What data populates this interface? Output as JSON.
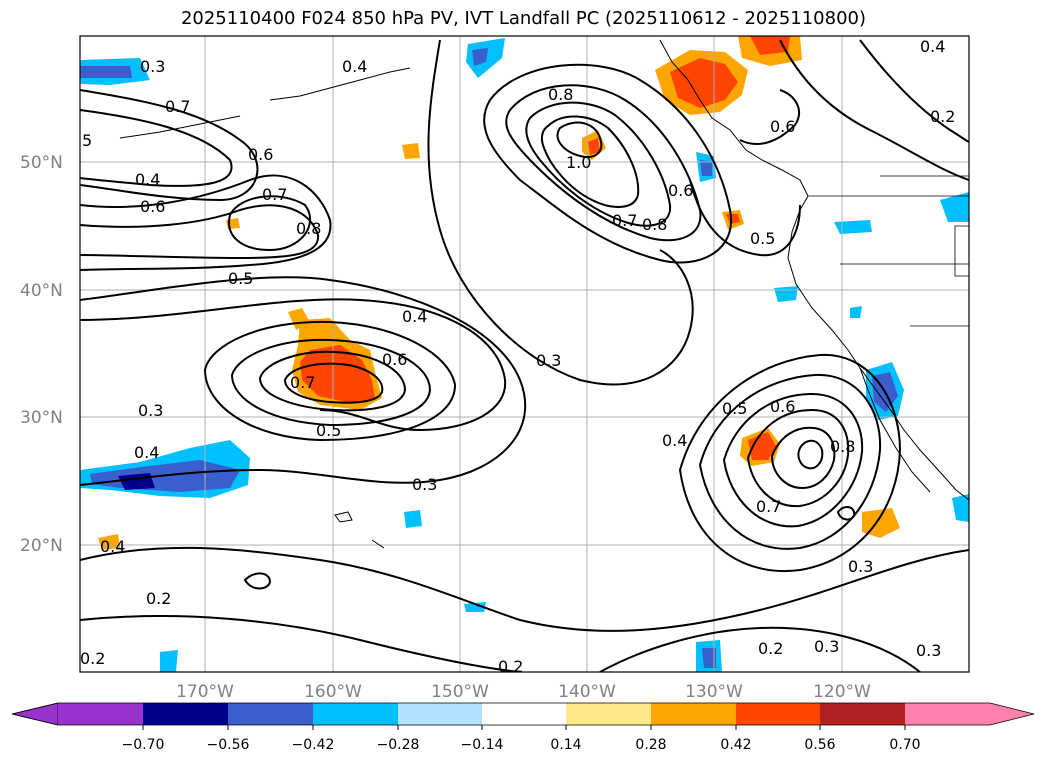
{
  "title": "2025110400 F024 850 hPa PV, IVT Landfall PC (2025110612 - 2025110800)",
  "map": {
    "lat_ticks": [
      "50°N",
      "40°N",
      "30°N",
      "20°N"
    ],
    "lon_ticks": [
      "170°W",
      "160°W",
      "150°W",
      "140°W",
      "130°W",
      "120°W"
    ],
    "contour_labels": [
      "0.3",
      "0.4",
      "0.7",
      "0.6",
      "0.4",
      "0.6",
      "0.7",
      "0.8",
      "0.5",
      "0.4",
      "0.6",
      "0.7",
      "0.5",
      "0.3",
      "0.3",
      "0.4",
      "0.3",
      "0.4",
      "0.2",
      "0.8",
      "1.0",
      "0.6",
      "0.7",
      "0.8",
      "0.5",
      "0.6",
      "0.4",
      "0.2",
      "0.5",
      "0.6",
      "0.4",
      "0.8",
      "0.7",
      "0.3",
      "0.2",
      "0.3",
      "0.3",
      "0.2",
      "0.2",
      "5"
    ]
  },
  "colorbar": {
    "colors": [
      "#9932CC",
      "#00008B",
      "#3A5FCD",
      "#00BFFF",
      "#B0E2FF",
      "#FFFFFF",
      "#FFE78A",
      "#FFA500",
      "#FF4500",
      "#B22222",
      "#FF82AB"
    ],
    "labels": [
      "−0.70",
      "−0.56",
      "−0.42",
      "−0.28",
      "−0.14",
      "0.14",
      "0.28",
      "0.42",
      "0.56",
      "0.70"
    ]
  }
}
